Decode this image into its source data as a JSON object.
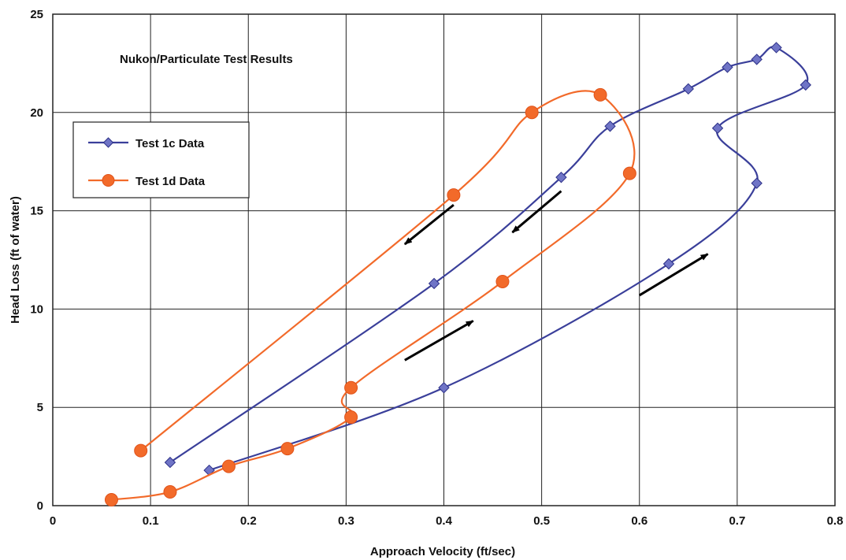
{
  "chart_data": {
    "type": "scatter",
    "title": "Nukon/Particulate Test Results",
    "xlabel": "Approach Velocity (ft/sec)",
    "ylabel": "Head Loss (ft of water)",
    "xlim": [
      0,
      0.8
    ],
    "ylim": [
      0,
      25
    ],
    "xticks": [
      "0",
      "0.1",
      "0.2",
      "0.3",
      "0.4",
      "0.5",
      "0.6",
      "0.7",
      "0.8"
    ],
    "yticks": [
      "0",
      "5",
      "10",
      "15",
      "20",
      "25"
    ],
    "grid": true,
    "legend_position": "left",
    "colors": {
      "test_1c": "#3a3f9a",
      "test_1d": "#f26a2a",
      "grid": "#222222",
      "arrow": "#000000"
    },
    "series": [
      {
        "name": "Test 1c Data",
        "marker": "diamond",
        "x": [
          0.16,
          0.4,
          0.63,
          0.72,
          0.68,
          0.77,
          0.74,
          0.72,
          0.69,
          0.65,
          0.57,
          0.52,
          0.39,
          0.12
        ],
        "y": [
          1.8,
          6.0,
          12.3,
          16.4,
          19.2,
          21.4,
          23.3,
          22.7,
          22.3,
          21.2,
          19.3,
          16.7,
          11.3,
          2.2
        ]
      },
      {
        "name": "Test 1d Data",
        "marker": "circle",
        "x": [
          0.06,
          0.12,
          0.18,
          0.24,
          0.305,
          0.305,
          0.46,
          0.59,
          0.56,
          0.49,
          0.41,
          0.09
        ],
        "y": [
          0.3,
          0.7,
          2.0,
          2.9,
          4.5,
          6.0,
          11.4,
          16.9,
          20.9,
          20.0,
          15.8,
          2.8
        ]
      }
    ],
    "annotations": [
      {
        "type": "arrow",
        "from": [
          0.41,
          15.3
        ],
        "to": [
          0.36,
          13.3
        ]
      },
      {
        "type": "arrow",
        "from": [
          0.52,
          16.0
        ],
        "to": [
          0.47,
          13.9
        ]
      },
      {
        "type": "arrow",
        "from": [
          0.36,
          7.4
        ],
        "to": [
          0.43,
          9.4
        ]
      },
      {
        "type": "arrow",
        "from": [
          0.6,
          10.7
        ],
        "to": [
          0.67,
          12.8
        ]
      }
    ]
  }
}
